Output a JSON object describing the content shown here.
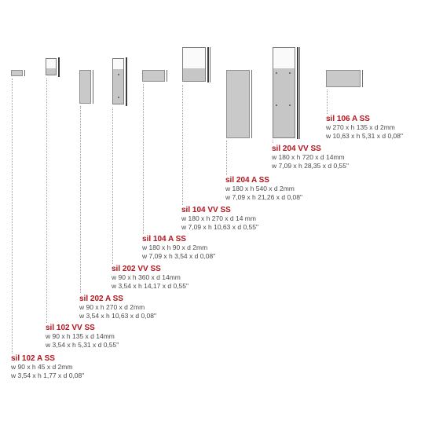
{
  "products": [
    {
      "name": "sil 102 A SS",
      "dims_mm": "w 90 x h 45 x d 2mm",
      "dims_in": "w 3,54 x h 1,77 x d 0,08\""
    },
    {
      "name": "sil 102 VV SS",
      "dims_mm": "w 90 x h 135 x d 14mm",
      "dims_in": "w 3,54 x h 5,31 x d 0,55\""
    },
    {
      "name": "sil 202 A SS",
      "dims_mm": "w 90 x h 270 x d 2mm",
      "dims_in": "w 3,54 x h 10,63 x d 0,08\""
    },
    {
      "name": "sil 202 VV SS",
      "dims_mm": "w 90 x h 360 x d 14mm",
      "dims_in": "w 3,54 x h 14,17 x d 0,55\""
    },
    {
      "name": "sil 104 A SS",
      "dims_mm": "w 180 x h 90 x d 2mm",
      "dims_in": "w 7,09 x h 3,54 x d 0,08\""
    },
    {
      "name": "sil 104 VV SS",
      "dims_mm": "w 180 x h 270 x d 14 mm",
      "dims_in": "w 7,09 x h 10,63 x d 0,55\""
    },
    {
      "name": "sil 204 A SS",
      "dims_mm": "w 180 x h 540 x d 2mm",
      "dims_in": "w 7,09 x h 21,26 x d 0,08\""
    },
    {
      "name": "sil 204 VV SS",
      "dims_mm": "w 180 x h 720 x d 14mm",
      "dims_in": "w 7,09 x h 28,35 x d 0,55\""
    },
    {
      "name": "sil 106 A SS",
      "dims_mm": "w 270 x h 135 x d 2mm",
      "dims_in": "w 10,63 x h 5,31 x d 0,08\""
    }
  ],
  "colors": {
    "name": "#b5141c",
    "text": "#4a4a4a",
    "plate": "#c9c9c9",
    "leader": "#9a9a9a"
  }
}
